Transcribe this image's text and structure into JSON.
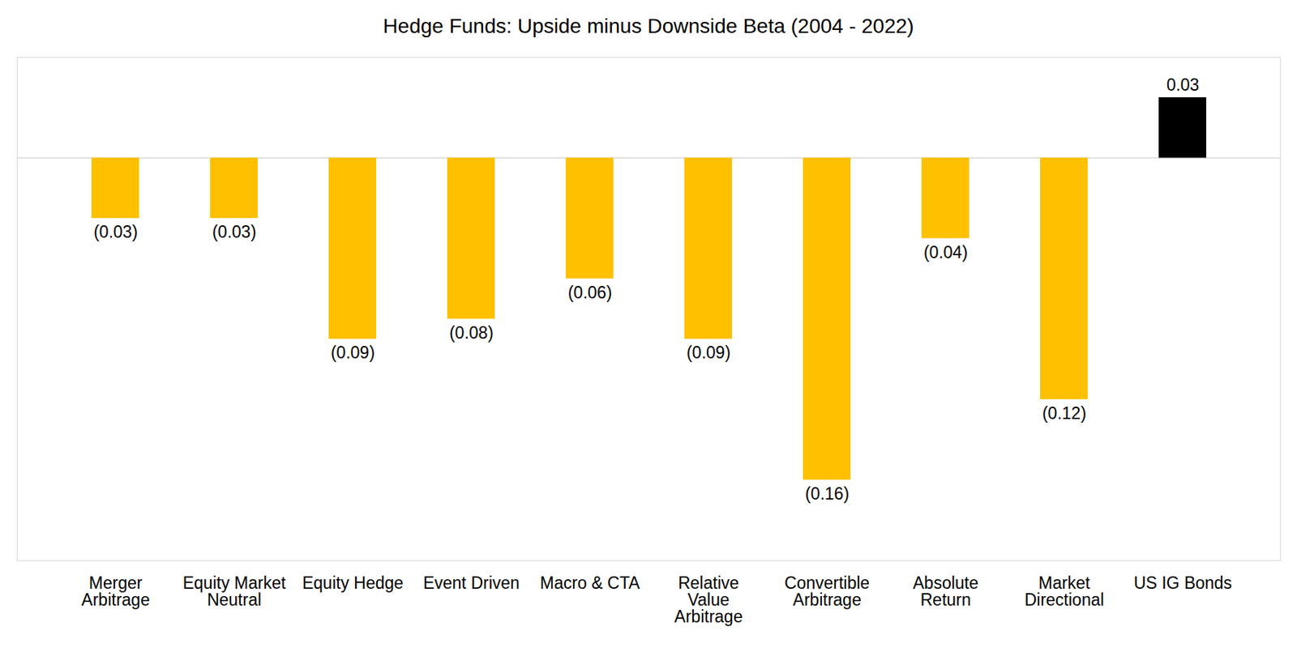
{
  "chart_data": {
    "type": "bar",
    "title": "Hedge Funds: Upside minus Downside Beta (2004 - 2022)",
    "categories": [
      "Merger Arbitrage",
      "Equity Market Neutral",
      "Equity Hedge",
      "Event Driven",
      "Macro & CTA",
      "Relative Value Arbitrage",
      "Convertible Arbitrage",
      "Absolute Return",
      "Market Directional",
      "US IG Bonds"
    ],
    "values": [
      -0.03,
      -0.03,
      -0.09,
      -0.08,
      -0.06,
      -0.09,
      -0.16,
      -0.04,
      -0.12,
      0.03
    ],
    "value_labels": [
      "(0.03)",
      "(0.03)",
      "(0.09)",
      "(0.08)",
      "(0.06)",
      "(0.09)",
      "(0.16)",
      "(0.04)",
      "(0.12)",
      "0.03"
    ],
    "colors": [
      "#ffc000",
      "#ffc000",
      "#ffc000",
      "#ffc000",
      "#ffc000",
      "#ffc000",
      "#ffc000",
      "#ffc000",
      "#ffc000",
      "#000000"
    ],
    "ylim": [
      -0.2,
      0.05
    ],
    "yticks": [
      0
    ],
    "data_labels": true,
    "tick_labels": "x",
    "grid": false
  }
}
